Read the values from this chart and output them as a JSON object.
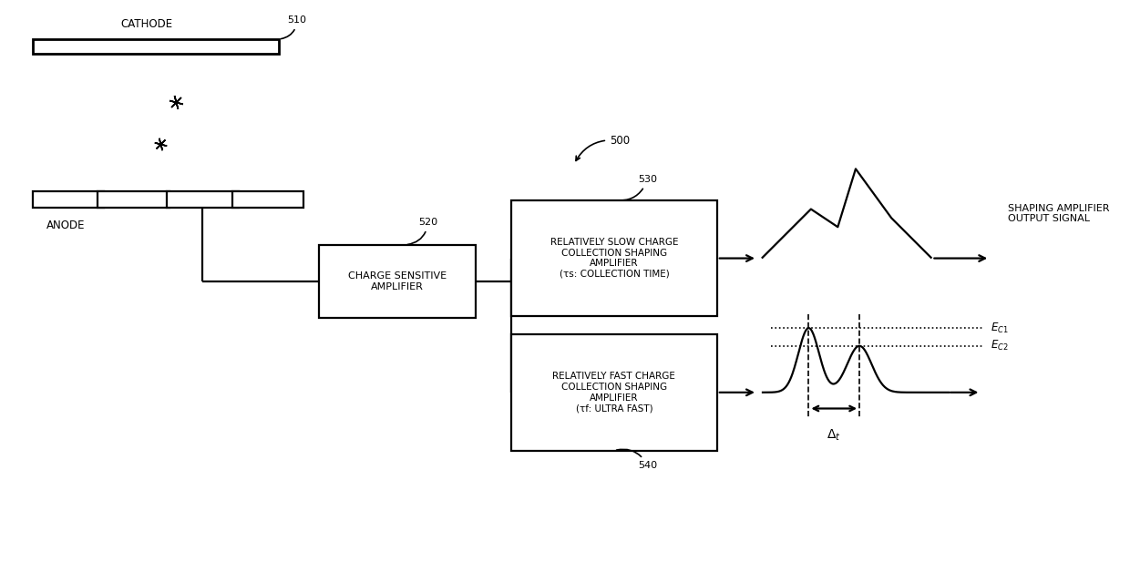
{
  "bg_color": "#ffffff",
  "line_color": "#000000",
  "fig_width": 12.4,
  "fig_height": 6.28,
  "labels": {
    "cathode": "CATHODE",
    "anode": "ANODE",
    "ref500": "500",
    "ref510": "510",
    "ref520": "520",
    "ref530": "530",
    "ref540": "540",
    "csa_line1": "CHARGE SENSITIVE",
    "csa_line2": "AMPLIFIER",
    "slow_amp": "RELATIVELY SLOW CHARGE\nCOLLECTION SHAPING\nAMPLIFIER\n(τs: COLLECTION TIME)",
    "fast_amp": "RELATIVELY FAST CHARGE\nCOLLECTION SHAPING\nAMPLIFIER\n(τf: ULTRA FAST)",
    "shaping_out": "SHAPING AMPLIFIER\nOUTPUT SIGNAL",
    "ec1": "EⱠ₁",
    "ec2": "EⱠ₂",
    "delta_t": "Δt"
  }
}
